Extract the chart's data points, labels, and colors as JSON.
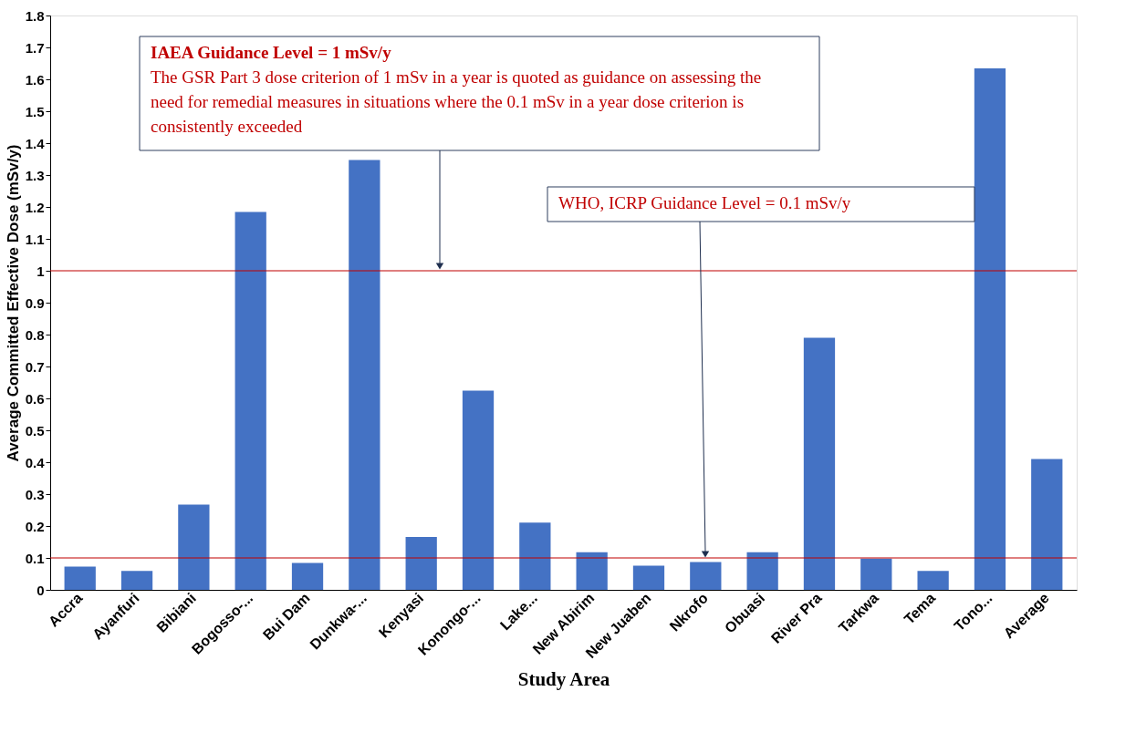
{
  "chart_data": {
    "type": "bar",
    "xlabel": "Study Area",
    "ylabel": "Average Committed Effective Dose (mSv/y)",
    "categories": [
      "Accra",
      "Ayanfuri",
      "Bibiani",
      "Bogosso-...",
      "Bui Dam",
      "Dunkwa-...",
      "Kenyasi",
      "Konongo-...",
      "Lake...",
      "New Abirim",
      "New Juaben",
      "Nkrofo",
      "Obuasi",
      "River Pra",
      "Tarkwa",
      "Tema",
      "Tono...",
      "Average"
    ],
    "values": [
      0.073,
      0.059,
      0.267,
      1.184,
      0.084,
      1.347,
      0.166,
      0.624,
      0.211,
      0.118,
      0.076,
      0.087,
      0.118,
      0.79,
      0.098,
      0.059,
      1.634,
      0.41
    ],
    "color": "#4472c4",
    "ylim": [
      0,
      1.8
    ],
    "yticks": [
      0,
      0.1,
      0.2,
      0.3,
      0.4,
      0.5,
      0.6,
      0.7,
      0.8,
      0.9,
      1,
      1.1,
      1.2,
      1.3,
      1.4,
      1.5,
      1.6,
      1.7,
      1.8
    ],
    "grid": false,
    "ref_lines": [
      {
        "axis": "y",
        "value": 1,
        "label": "IAEA Guidance Level = 1 mSv/y",
        "color": "#c00000"
      },
      {
        "axis": "y",
        "value": 0.1,
        "label": "WHO, ICRP Guidance Level = 0.1 mSv/y",
        "color": "#c00000"
      }
    ],
    "annotations": [
      "The GSR Part 3 dose criterion of 1 mSv in a year is quoted as guidance on assessing the need for remedial measures in situations where the 0.1 mSv in a year dose criterion is consistently exceeded"
    ]
  }
}
